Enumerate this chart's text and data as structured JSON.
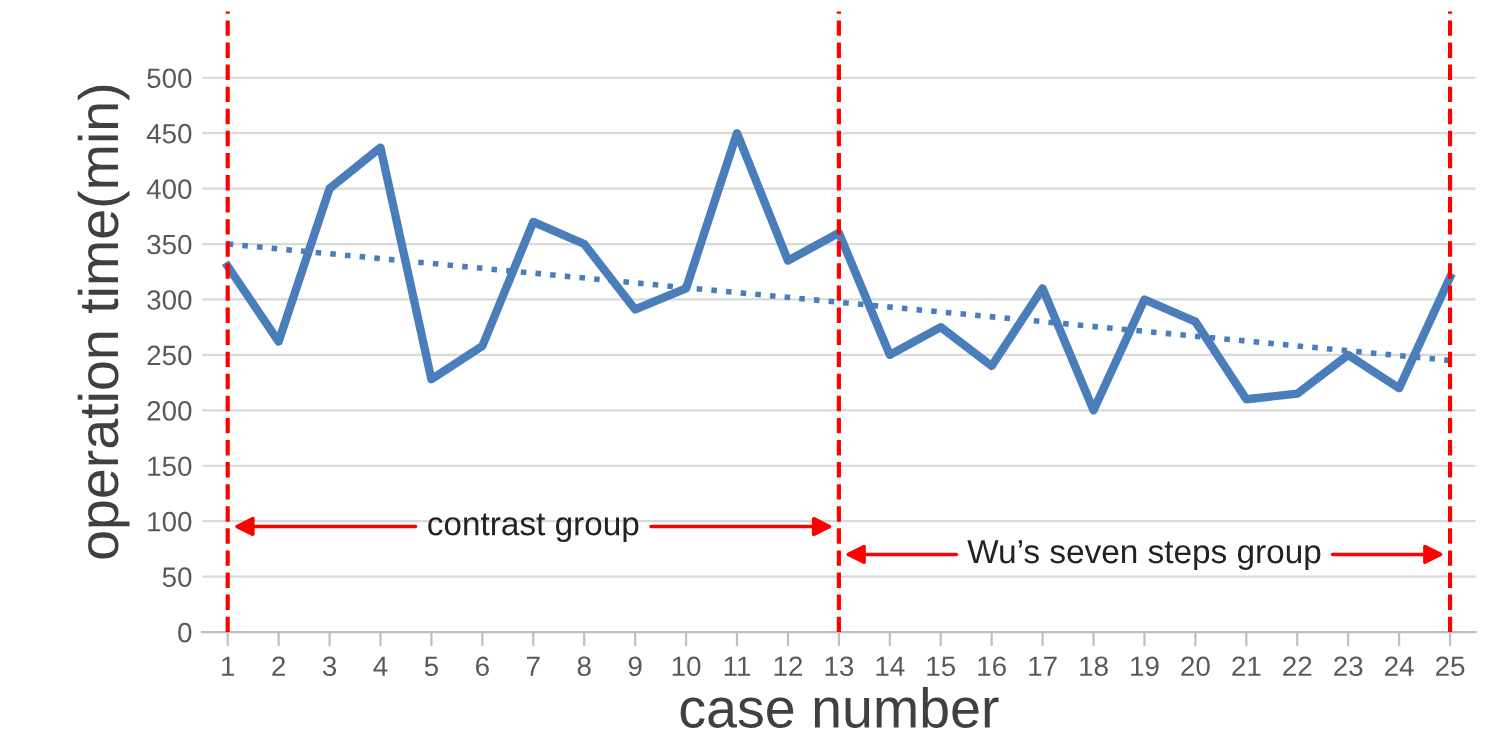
{
  "chart_data": {
    "type": "line",
    "xlabel": "case number",
    "ylabel": "operation time(min)",
    "x": [
      1,
      2,
      3,
      4,
      5,
      6,
      7,
      8,
      9,
      10,
      11,
      12,
      13,
      14,
      15,
      16,
      17,
      18,
      19,
      20,
      21,
      22,
      23,
      24,
      25
    ],
    "series": [
      {
        "color": "#4a7ebb",
        "values": [
          330,
          262,
          400,
          437,
          228,
          258,
          370,
          350,
          291,
          310,
          450,
          335,
          360,
          250,
          275,
          240,
          310,
          200,
          300,
          280,
          210,
          215,
          250,
          220,
          320
        ]
      },
      {
        "type": "line",
        "color": "#4a7ebb",
        "line_style": "dotted",
        "x": [
          1,
          25
        ],
        "values": [
          350,
          245
        ]
      }
    ],
    "xlim": [
      0.5,
      25.5
    ],
    "xticks": [
      1,
      2,
      3,
      4,
      5,
      6,
      7,
      8,
      9,
      10,
      11,
      12,
      13,
      14,
      15,
      16,
      17,
      18,
      19,
      20,
      21,
      22,
      23,
      24,
      25
    ],
    "ylim": [
      0,
      560
    ],
    "yticks": [
      0,
      50,
      100,
      150,
      200,
      250,
      300,
      350,
      400,
      450,
      500
    ],
    "grid": "y",
    "line_style": "solid",
    "marker": "none",
    "ref_lines": [
      {
        "axis": "x",
        "value": 1,
        "color": "#ff0000",
        "line_style": "dashed"
      },
      {
        "axis": "x",
        "value": 13,
        "color": "#ff0000",
        "line_style": "dashed"
      },
      {
        "axis": "x",
        "value": 25,
        "color": "#ff0000",
        "line_style": "dashed"
      }
    ],
    "annotations": [
      "contrast group",
      "Wu’s seven steps group"
    ]
  }
}
